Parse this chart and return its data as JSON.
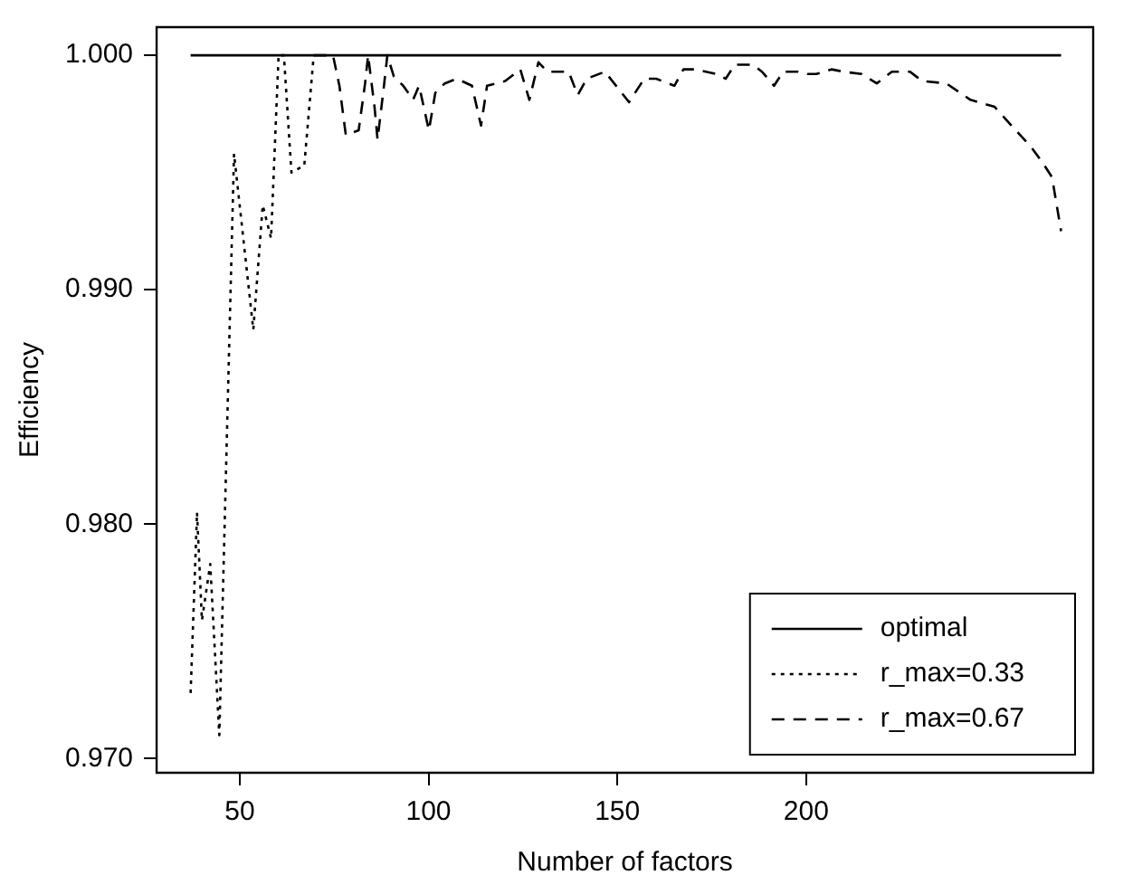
{
  "chart_data": {
    "type": "line",
    "xlabel": "Number of factors",
    "ylabel": "Efficiency",
    "xlim": [
      28,
      276
    ],
    "ylim": [
      0.9694,
      1.0012
    ],
    "xticks": [
      50,
      100,
      150,
      200
    ],
    "yticks": [
      {
        "value": 0.97,
        "label": "0.970"
      },
      {
        "value": 0.98,
        "label": "0.980"
      },
      {
        "value": 0.99,
        "label": "0.990"
      },
      {
        "value": 1,
        "label": "1.000"
      }
    ],
    "grid": false,
    "legend": "bottom right",
    "marker": "none",
    "series": [
      {
        "name": "optimal",
        "color": "#000000",
        "line_style": "solid",
        "x": [
          37,
          267.5
        ],
        "values": [
          1,
          1
        ]
      },
      {
        "name": "r_max=0.33",
        "color": "#000000",
        "line_style": "dotted",
        "x": [
          37,
          38.7,
          40,
          42.2,
          44.6,
          48.5,
          53.6,
          56.1,
          58.3,
          60.3,
          61.7,
          63.7,
          67.1,
          69.6
        ],
        "values": [
          0.9728,
          0.9805,
          0.9759,
          0.9783,
          0.971,
          0.9958,
          0.9883,
          0.9936,
          0.9922,
          1,
          1,
          0.995,
          0.9953,
          1
        ]
      },
      {
        "name": "r_max=0.67",
        "color": "#000000",
        "line_style": "dashed",
        "x": [
          69.6,
          72.2,
          74.7,
          76.4,
          78.1,
          81.5,
          83.2,
          84,
          85.7,
          86.5,
          88.2,
          89.1,
          90.8,
          93.3,
          95.9,
          97.5,
          100.1,
          101.8,
          104.3,
          107.5,
          111.5,
          113.9,
          115.5,
          120.3,
          124.3,
          126.7,
          129.1,
          131.5,
          137.1,
          139.5,
          141.9,
          146.7,
          153.1,
          157.1,
          160.3,
          165.1,
          167.5,
          170.7,
          176.3,
          178.7,
          181.1,
          185.9,
          188.3,
          191.5,
          193.9,
          197.9,
          200.3,
          202.7,
          206.7,
          209.9,
          214.7,
          218.7,
          222.7,
          227.5,
          230.7,
          237.1,
          243.5,
          249.9,
          255.5,
          259.5,
          262.7,
          265.1,
          267.5
        ],
        "values": [
          1,
          1,
          1,
          0.9987,
          0.9966,
          0.9968,
          0.9988,
          1,
          0.9978,
          0.9964,
          0.9987,
          1,
          0.9991,
          0.9987,
          0.9981,
          0.9987,
          0.9968,
          0.9984,
          0.9988,
          0.999,
          0.9987,
          0.997,
          0.9987,
          0.9989,
          0.9994,
          0.9981,
          0.9997,
          0.9993,
          0.9993,
          0.9983,
          0.999,
          0.9993,
          0.998,
          0.999,
          0.999,
          0.9987,
          0.9994,
          0.9994,
          0.9992,
          0.999,
          0.9996,
          0.9996,
          0.9993,
          0.9987,
          0.9993,
          0.9993,
          0.9992,
          0.9992,
          0.9994,
          0.9993,
          0.9992,
          0.9988,
          0.9993,
          0.9993,
          0.9989,
          0.9988,
          0.9981,
          0.9978,
          0.9968,
          0.9961,
          0.9954,
          0.9948,
          0.9925
        ]
      }
    ]
  }
}
